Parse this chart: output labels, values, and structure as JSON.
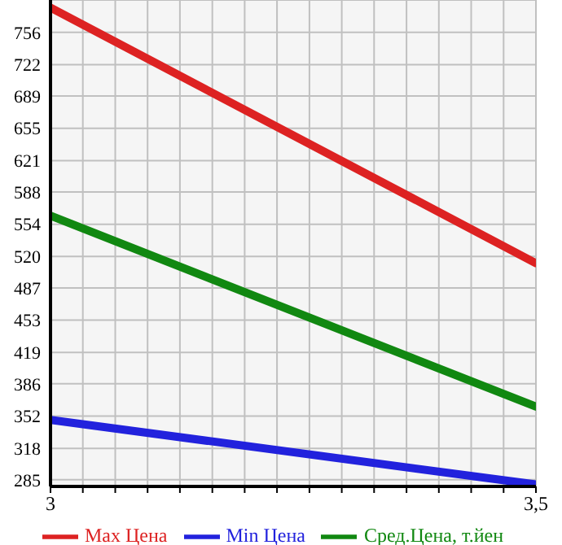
{
  "chart_data": {
    "type": "line",
    "x": [
      3,
      3.5
    ],
    "series": [
      {
        "name": "Max Цена",
        "color": "#dd2222",
        "values": [
          782,
          513
        ]
      },
      {
        "name": "Min Цена",
        "color": "#2222dd",
        "values": [
          348,
          280
        ]
      },
      {
        "name": "Сред.Цена, т.йен",
        "color": "#118811",
        "values": [
          563,
          362
        ]
      }
    ],
    "xlim": [
      3,
      3.5
    ],
    "xticks": [
      {
        "value": 3,
        "label": "3"
      },
      {
        "value": 3.0333,
        "label": null
      },
      {
        "value": 3.0667,
        "label": null
      },
      {
        "value": 3.1,
        "label": null
      },
      {
        "value": 3.1333,
        "label": null
      },
      {
        "value": 3.1667,
        "label": null
      },
      {
        "value": 3.2,
        "label": null
      },
      {
        "value": 3.2333,
        "label": null
      },
      {
        "value": 3.2667,
        "label": null
      },
      {
        "value": 3.3,
        "label": null
      },
      {
        "value": 3.3333,
        "label": null
      },
      {
        "value": 3.3667,
        "label": null
      },
      {
        "value": 3.4,
        "label": null
      },
      {
        "value": 3.4333,
        "label": null
      },
      {
        "value": 3.4667,
        "label": null
      },
      {
        "value": 3.5,
        "label": "3,5"
      }
    ],
    "ylim": [
      278,
      790
    ],
    "yticks": [
      285,
      318,
      352,
      386,
      419,
      453,
      487,
      520,
      554,
      588,
      621,
      655,
      689,
      722,
      756
    ],
    "grid": true,
    "legend": "bottom",
    "marker": "none",
    "line_style": "solid"
  }
}
